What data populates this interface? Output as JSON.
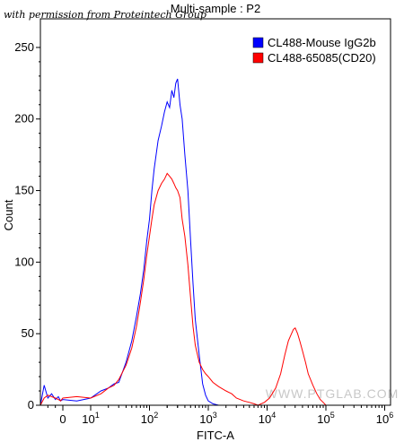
{
  "credit": "with permission from Proteintech Group",
  "watermark": "WWW.PTGLAB.COM",
  "chart_data": {
    "type": "area",
    "title": "Multi-sample : P2",
    "xlabel": "FITC-A",
    "ylabel": "Count",
    "x_scale": "biexponential",
    "xlim": [
      -300,
      1000000
    ],
    "ylim": [
      0,
      270
    ],
    "x_ticks": [
      {
        "value": 0,
        "label": "0",
        "sup": ""
      },
      {
        "value": 10,
        "label": "10",
        "sup": "1"
      },
      {
        "value": 100,
        "label": "10",
        "sup": "2"
      },
      {
        "value": 1000,
        "label": "10",
        "sup": "3"
      },
      {
        "value": 10000,
        "label": "10",
        "sup": "4"
      },
      {
        "value": 100000,
        "label": "10",
        "sup": "5"
      },
      {
        "value": 1000000,
        "label": "10",
        "sup": "6"
      }
    ],
    "y_ticks": [
      0,
      50,
      100,
      150,
      200,
      250
    ],
    "grid": false,
    "legend_position": "top-right",
    "series": [
      {
        "name": "CL488-Mouse IgG2b",
        "color": "#0000ff",
        "points": [
          [
            -300,
            0
          ],
          [
            -250,
            14
          ],
          [
            -200,
            5
          ],
          [
            -150,
            8
          ],
          [
            -100,
            4
          ],
          [
            -60,
            6
          ],
          [
            -30,
            3
          ],
          [
            0,
            4
          ],
          [
            5,
            3
          ],
          [
            10,
            5
          ],
          [
            15,
            10
          ],
          [
            20,
            12
          ],
          [
            25,
            15
          ],
          [
            30,
            16
          ],
          [
            40,
            30
          ],
          [
            50,
            45
          ],
          [
            60,
            62
          ],
          [
            70,
            78
          ],
          [
            80,
            95
          ],
          [
            90,
            115
          ],
          [
            100,
            130
          ],
          [
            110,
            150
          ],
          [
            120,
            165
          ],
          [
            140,
            185
          ],
          [
            160,
            195
          ],
          [
            180,
            205
          ],
          [
            200,
            212
          ],
          [
            220,
            208
          ],
          [
            240,
            220
          ],
          [
            260,
            215
          ],
          [
            280,
            225
          ],
          [
            300,
            228
          ],
          [
            330,
            210
          ],
          [
            360,
            200
          ],
          [
            400,
            175
          ],
          [
            450,
            150
          ],
          [
            500,
            115
          ],
          [
            550,
            85
          ],
          [
            600,
            60
          ],
          [
            700,
            35
          ],
          [
            800,
            15
          ],
          [
            900,
            7
          ],
          [
            1000,
            3
          ],
          [
            1200,
            1
          ],
          [
            1500,
            0
          ],
          [
            1000000,
            0
          ]
        ]
      },
      {
        "name": "CL488-65085(CD20)",
        "color": "#ff0000",
        "points": [
          [
            -300,
            0
          ],
          [
            -250,
            5
          ],
          [
            -200,
            7
          ],
          [
            -150,
            6
          ],
          [
            -100,
            5
          ],
          [
            -60,
            4
          ],
          [
            -30,
            3
          ],
          [
            0,
            5
          ],
          [
            5,
            6
          ],
          [
            10,
            5
          ],
          [
            15,
            8
          ],
          [
            20,
            12
          ],
          [
            25,
            14
          ],
          [
            30,
            18
          ],
          [
            40,
            28
          ],
          [
            50,
            40
          ],
          [
            60,
            55
          ],
          [
            70,
            72
          ],
          [
            80,
            88
          ],
          [
            90,
            105
          ],
          [
            100,
            118
          ],
          [
            110,
            130
          ],
          [
            120,
            140
          ],
          [
            140,
            150
          ],
          [
            160,
            155
          ],
          [
            180,
            158
          ],
          [
            200,
            162
          ],
          [
            220,
            160
          ],
          [
            240,
            158
          ],
          [
            260,
            155
          ],
          [
            280,
            152
          ],
          [
            300,
            150
          ],
          [
            330,
            145
          ],
          [
            360,
            130
          ],
          [
            400,
            118
          ],
          [
            450,
            98
          ],
          [
            500,
            75
          ],
          [
            550,
            55
          ],
          [
            600,
            42
          ],
          [
            700,
            30
          ],
          [
            800,
            25
          ],
          [
            900,
            22
          ],
          [
            1000,
            20
          ],
          [
            1200,
            16
          ],
          [
            1500,
            13
          ],
          [
            2000,
            10
          ],
          [
            2500,
            8
          ],
          [
            3000,
            5
          ],
          [
            4000,
            3
          ],
          [
            5000,
            2
          ],
          [
            6000,
            1
          ],
          [
            7000,
            0
          ],
          [
            9000,
            2
          ],
          [
            11000,
            5
          ],
          [
            14000,
            12
          ],
          [
            17000,
            22
          ],
          [
            20000,
            35
          ],
          [
            23000,
            45
          ],
          [
            26000,
            50
          ],
          [
            28000,
            53
          ],
          [
            30000,
            54
          ],
          [
            33000,
            50
          ],
          [
            36000,
            45
          ],
          [
            40000,
            38
          ],
          [
            45000,
            30
          ],
          [
            50000,
            22
          ],
          [
            60000,
            14
          ],
          [
            70000,
            8
          ],
          [
            80000,
            4
          ],
          [
            90000,
            2
          ],
          [
            100000,
            0
          ],
          [
            1000000,
            0
          ]
        ]
      }
    ]
  }
}
